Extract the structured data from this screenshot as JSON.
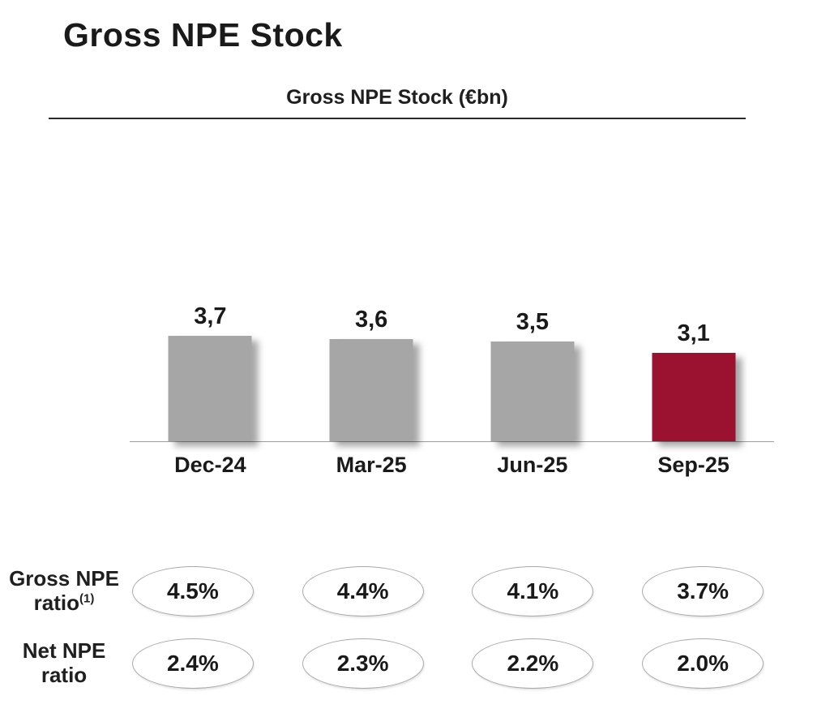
{
  "title": "Gross NPE Stock",
  "colors": {
    "background": "#FFFFFF",
    "text": "#1A1A1A",
    "bar_gray": "#A6A6A6",
    "accent_red": "#9B1230",
    "axis_line": "#9E9E9E",
    "divider_line": "#2B2B2B",
    "oval_border": "#A9A9A9"
  },
  "chart_data": {
    "type": "bar",
    "title": "Gross NPE Stock (€bn)",
    "categories": [
      "Dec-24",
      "Mar-25",
      "Jun-25",
      "Sep-25"
    ],
    "values": [
      3.7,
      3.6,
      3.5,
      3.1
    ],
    "value_labels": [
      "3,7",
      "3,6",
      "3,5",
      "3,1"
    ],
    "bar_colors": [
      "#A6A6A6",
      "#A6A6A6",
      "#A6A6A6",
      "#9B1230"
    ],
    "ylabel": "",
    "xlabel": "",
    "ylim": [
      0,
      11
    ],
    "grid": false,
    "legend_position": "none",
    "secondary_rows": [
      {
        "label_line1": "Gross NPE",
        "label_line2": "ratio",
        "superscript": "(1)",
        "values": [
          "4.5%",
          "4.4%",
          "4.1%",
          "3.7%"
        ]
      },
      {
        "label_line1": "Net NPE",
        "label_line2": "ratio",
        "superscript": "",
        "values": [
          "2.4%",
          "2.3%",
          "2.2%",
          "2.0%"
        ]
      }
    ]
  }
}
